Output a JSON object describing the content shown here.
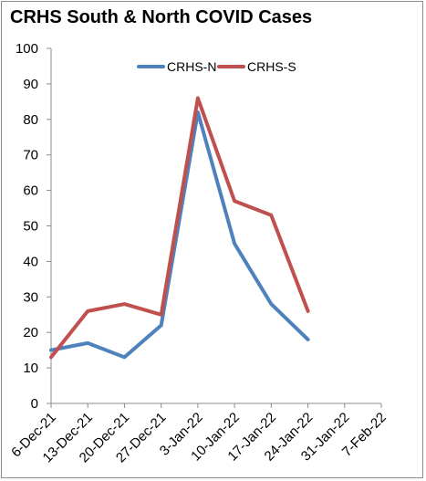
{
  "chart_data": {
    "type": "line",
    "title": "CRHS South & North COVID Cases",
    "xlabel": "",
    "ylabel": "",
    "categories": [
      "6-Dec-21",
      "13-Dec-21",
      "20-Dec-21",
      "27-Dec-21",
      "3-Jan-22",
      "10-Jan-22",
      "17-Jan-22",
      "24-Jan-22",
      "31-Jan-22",
      "7-Feb-22"
    ],
    "series": [
      {
        "name": "CRHS-N",
        "color": "#4f81bd",
        "values": [
          15,
          17,
          13,
          22,
          82,
          45,
          28,
          18,
          null,
          null
        ]
      },
      {
        "name": "CRHS-S",
        "color": "#c0504d",
        "values": [
          13,
          26,
          28,
          25,
          86,
          57,
          53,
          26,
          null,
          null
        ]
      }
    ],
    "ylim": [
      0,
      100
    ],
    "yticks": [
      0,
      10,
      20,
      30,
      40,
      50,
      60,
      70,
      80,
      90,
      100
    ],
    "grid": false,
    "legend": "top-center"
  }
}
